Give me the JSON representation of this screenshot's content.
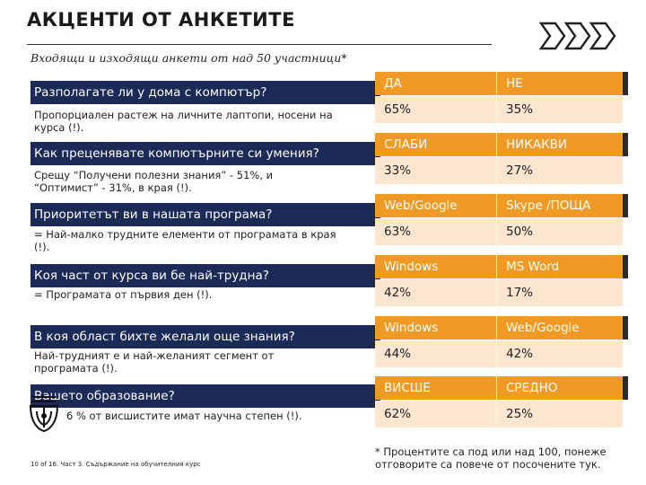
{
  "header": {
    "title": "АКЦЕНТИ ОТ АНКЕТИТЕ",
    "subtitle": "Входящи и изходящи анкети от над 50 участници*"
  },
  "rows": [
    {
      "question": "Разполагате ли у дома с компютър?",
      "note": "Пропорциален растеж на личните лаптопи, носени на курса (!).",
      "col1_head": "ДА",
      "col2_head": "НЕ",
      "col1_value": "65%",
      "col2_value": "35%"
    },
    {
      "question": "Как преценявате компютърните си умения?",
      "note": "Срещу “Получени полезни знания” - 51%, и “Оптимист” - 31%, в края (!).",
      "col1_head": "СЛАБИ",
      "col2_head": "НИКАКВИ",
      "col1_value": "33%",
      "col2_value": "27%"
    },
    {
      "question": "Приоритетът ви в нашата програма?",
      "note": "= Най-малко трудните елементи от програмата в края (!).",
      "col1_head": "Web/Google",
      "col2_head": "Skype /ПОЩА",
      "col1_value": "63%",
      "col2_value": "50%"
    },
    {
      "question": "Коя част от курса ви бе най-трудна?",
      "note": "= Програмата от първия ден (!).",
      "col1_head": "Windows",
      "col2_head": "MS Word",
      "col1_value": "42%",
      "col2_value": "17%"
    },
    {
      "question": "В коя област бихте желали още знания?",
      "note": "Най-трудният е и най-желаният сегмент от програмата (!).",
      "col1_head": "Windows",
      "col2_head": "Web/Google",
      "col1_value": "44%",
      "col2_value": "42%"
    },
    {
      "question": "Вашето образование?",
      "note": "6 % от висшистите имат научна степен (!).",
      "col1_head": "ВИСШЕ",
      "col2_head": "СРЕДНО",
      "col1_value": "62%",
      "col2_value": "25%"
    }
  ],
  "footer": {
    "page_info": "10 of 16. Част 3. Съдържание на обучителния курс",
    "footnote": "* Процентите са под или над 100, понеже отговорите са повече от посочените тук."
  },
  "colors": {
    "question_bar": "#1b2a57",
    "answer_head": "#ef9a24",
    "answer_row": "#fce6cf"
  },
  "icons": [
    "chevrons-logo-icon",
    "crest-seal-icon"
  ]
}
